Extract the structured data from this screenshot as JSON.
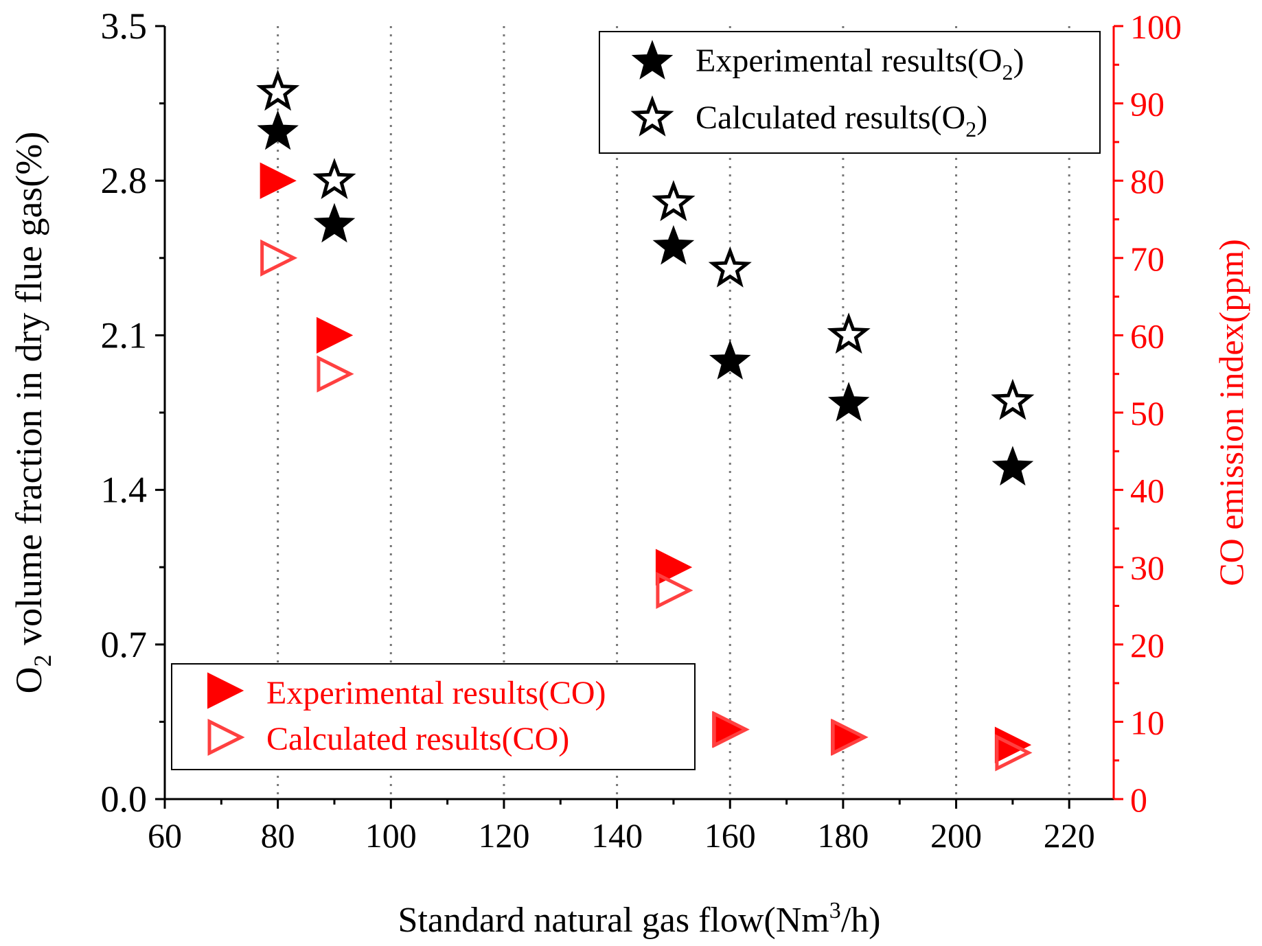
{
  "chart_data": {
    "type": "scatter",
    "xlabel_prefix": "Standard natural gas flow(Nm",
    "xlabel_sup": "3",
    "xlabel_suffix": "/h)",
    "ylabel_prefix": "O",
    "ylabel_sub": "2",
    "ylabel_suffix": " volume fraction in dry flue gas(%)",
    "y2label": "CO emission index(ppm)",
    "xlim": [
      60,
      230
    ],
    "ylim": [
      0,
      3.5
    ],
    "y2lim": [
      0,
      100
    ],
    "xticks": [
      60,
      80,
      100,
      120,
      140,
      160,
      180,
      200,
      220
    ],
    "xtick_labels": [
      "60",
      "80",
      "100",
      "120",
      "140",
      "160",
      "180",
      "200",
      "220"
    ],
    "yticks": [
      0,
      0.7,
      1.4,
      2.1,
      2.8,
      3.5
    ],
    "ytick_labels": [
      "0.0",
      "0.7",
      "1.4",
      "2.1",
      "2.8",
      "3.5"
    ],
    "y2ticks": [
      0,
      10,
      20,
      30,
      40,
      50,
      60,
      70,
      80,
      90,
      100
    ],
    "y2tick_labels": [
      "0",
      "10",
      "20",
      "30",
      "40",
      "50",
      "60",
      "70",
      "80",
      "90",
      "100"
    ],
    "grid_x": [
      80,
      100,
      120,
      140,
      160,
      180,
      200,
      220
    ],
    "legend_top": {
      "placement": "top-right",
      "entries": [
        {
          "prefix": "Experimental results(O",
          "sub": "2",
          "suffix": ")"
        },
        {
          "prefix": "Calculated results(O",
          "sub": "2",
          "suffix": ")"
        }
      ]
    },
    "legend_bottom": {
      "placement": "bottom-left",
      "entries": [
        {
          "label": "Experimental results(CO)"
        },
        {
          "label": "Calculated results(CO)"
        }
      ]
    },
    "series": [
      {
        "name": "Experimental results(O2)",
        "axis": "left",
        "marker": "filled-star",
        "color": "#000000",
        "x": [
          80,
          90,
          150,
          160,
          181,
          210
        ],
        "y": [
          3.02,
          2.6,
          2.5,
          1.98,
          1.79,
          1.5
        ]
      },
      {
        "name": "Calculated results(O2)",
        "axis": "left",
        "marker": "hollow-star",
        "color": "#000000",
        "x": [
          80,
          90,
          150,
          160,
          181,
          210
        ],
        "y": [
          3.2,
          2.8,
          2.7,
          2.4,
          2.1,
          1.8
        ]
      },
      {
        "name": "Experimental results(CO)",
        "axis": "right",
        "marker": "filled-triangle",
        "color": "#ff0000",
        "x": [
          80,
          90,
          150,
          160,
          181,
          210
        ],
        "y": [
          80,
          60,
          30,
          9,
          8,
          7
        ]
      },
      {
        "name": "Calculated results(CO)",
        "axis": "right",
        "marker": "hollow-triangle",
        "color": "#ff4040",
        "x": [
          80,
          90,
          150,
          160,
          181,
          210
        ],
        "y": [
          70,
          55,
          27,
          9,
          8,
          6
        ]
      }
    ]
  }
}
